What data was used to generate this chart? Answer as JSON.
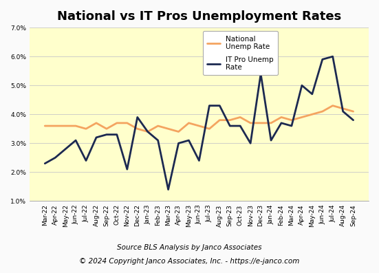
{
  "title": "National vs IT Pros Unemployment Rates",
  "background_color": "#FAFAFA",
  "plot_bg_color": "#FFFFCC",
  "source_line1": "Source BLS Analysis by Janco Associates",
  "source_line2": "© 2024 Copyright Janco Associates, Inc. - https://e-janco.com",
  "labels": [
    "Mar-22",
    "Apr-22",
    "May-22",
    "Jun-22",
    "Jul-22",
    "Aug-22",
    "Sep-22",
    "Oct-22",
    "Nov-22",
    "Dec-22",
    "Jan-23",
    "Feb-23",
    "Mar-23",
    "Apr-23",
    "May-23",
    "Jun-23",
    "Jul-23",
    "Aug-23",
    "Sep-23",
    "Oct-23",
    "Nov-23",
    "Dec-23",
    "Jan-24",
    "Feb-24",
    "Mar-24",
    "Apr-24",
    "May-24",
    "Jun-24",
    "Jul-24",
    "Aug-24",
    "Sep-24"
  ],
  "national_rate": [
    3.6,
    3.6,
    3.6,
    3.6,
    3.5,
    3.7,
    3.5,
    3.7,
    3.7,
    3.5,
    3.4,
    3.6,
    3.5,
    3.4,
    3.7,
    3.6,
    3.5,
    3.8,
    3.8,
    3.9,
    3.7,
    3.7,
    3.7,
    3.9,
    3.8,
    3.9,
    4.0,
    4.1,
    4.3,
    4.2,
    4.1
  ],
  "it_pro_rate": [
    2.3,
    2.5,
    2.8,
    3.1,
    2.4,
    3.2,
    3.3,
    3.3,
    2.1,
    3.9,
    3.4,
    3.1,
    1.4,
    3.0,
    3.1,
    2.4,
    4.3,
    4.3,
    3.6,
    3.6,
    3.0,
    5.4,
    3.1,
    3.7,
    3.6,
    5.0,
    4.7,
    5.9,
    6.0,
    4.1,
    3.8
  ],
  "national_color": "#F4A460",
  "it_pro_color": "#1C2951",
  "ylim": [
    1.0,
    7.0
  ],
  "yticks": [
    1.0,
    2.0,
    3.0,
    4.0,
    5.0,
    6.0,
    7.0
  ],
  "legend_labels": [
    "National\nUnemp Rate",
    "IT Pro Unemp\nRate"
  ],
  "grid_color": "#c8c8c8",
  "national_linewidth": 2.0,
  "it_pro_linewidth": 2.0,
  "title_fontsize": 13,
  "tick_fontsize": 6.5,
  "source_fontsize": 7.5
}
